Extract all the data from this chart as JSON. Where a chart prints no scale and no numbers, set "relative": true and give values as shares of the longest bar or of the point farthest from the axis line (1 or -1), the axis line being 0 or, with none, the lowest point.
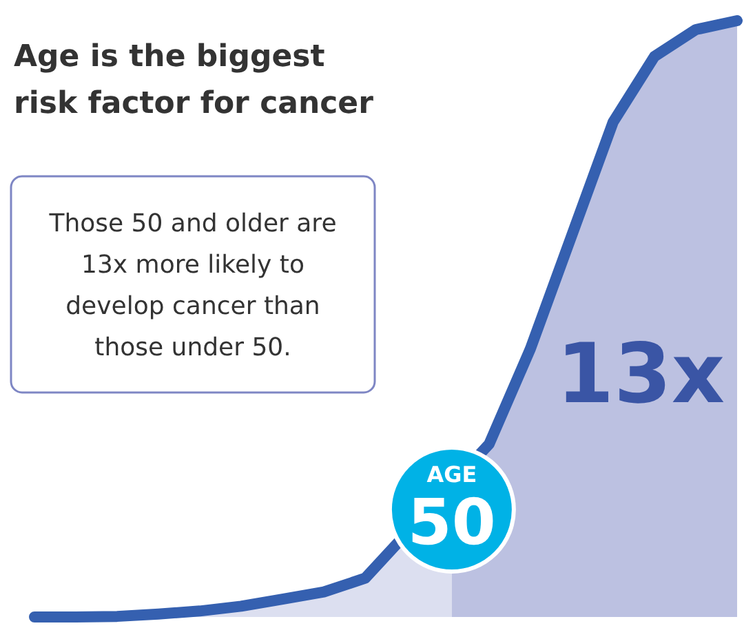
{
  "chart_data": {
    "type": "area",
    "title": "Age is the biggest risk factor for cancer",
    "relative": true,
    "categories": [
      null,
      null,
      null,
      null,
      null,
      null,
      null,
      null,
      null,
      null,
      null,
      null,
      null,
      null,
      null,
      null,
      null,
      null
    ],
    "series": [
      {
        "color": "#3560b0",
        "values": [
          0,
          0,
          0.001,
          0.005,
          0.01,
          0.018,
          0.03,
          0.042,
          0.065,
          null,
          null,
          0.29,
          0.45,
          0.64,
          0.83,
          0.94,
          0.985,
          1
        ]
      }
    ],
    "annotations": [
      "Those 50 and older are 13x more likely to develop cancer than those under 50.",
      "13x",
      "AGE 50"
    ]
  }
}
